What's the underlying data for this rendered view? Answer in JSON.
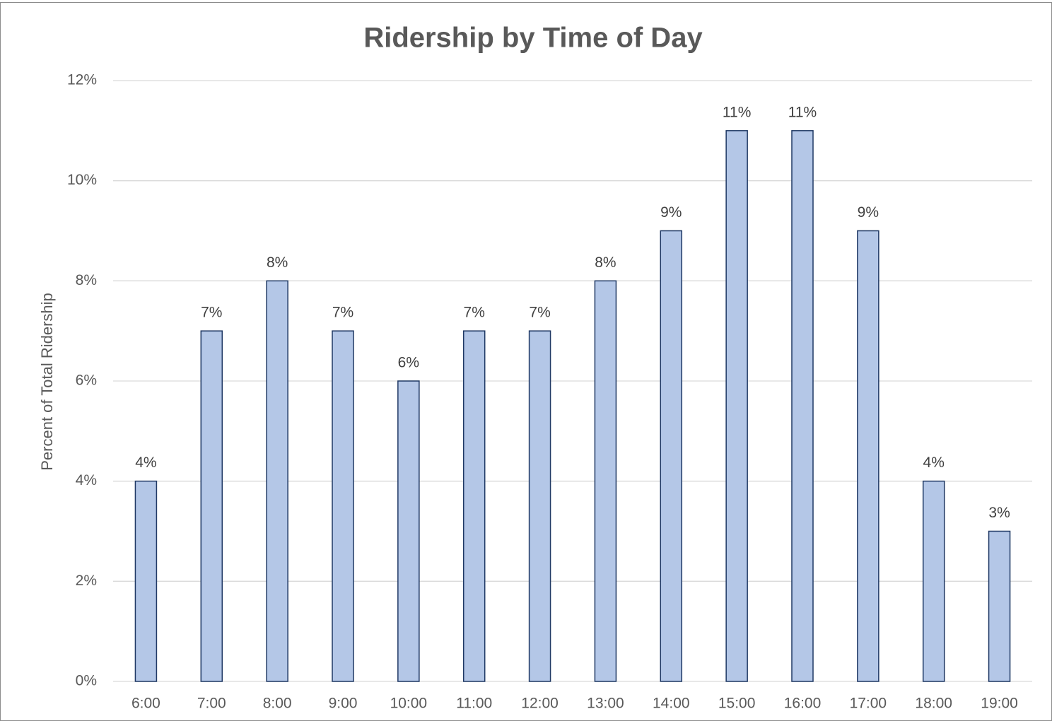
{
  "chart_data": {
    "type": "bar",
    "title": "Ridership by Time of Day",
    "y_label": "Percent of Total Ridership",
    "categories": [
      "6:00",
      "7:00",
      "8:00",
      "9:00",
      "10:00",
      "11:00",
      "12:00",
      "13:00",
      "14:00",
      "15:00",
      "16:00",
      "17:00",
      "18:00",
      "19:00"
    ],
    "values": [
      4,
      7,
      8,
      7,
      6,
      7,
      7,
      8,
      9,
      11,
      11,
      9,
      4,
      3
    ],
    "value_labels": [
      "4%",
      "7%",
      "8%",
      "7%",
      "6%",
      "7%",
      "7%",
      "8%",
      "9%",
      "11%",
      "11%",
      "9%",
      "4%",
      "3%"
    ],
    "color": "#b4c7e7",
    "edge_color": "#1f3864",
    "ylim": [
      0,
      12
    ],
    "yticks": [
      {
        "value": 0,
        "label": "0%"
      },
      {
        "value": 2,
        "label": "2%"
      },
      {
        "value": 4,
        "label": "4%"
      },
      {
        "value": 6,
        "label": "6%"
      },
      {
        "value": 8,
        "label": "8%"
      },
      {
        "value": 10,
        "label": "10%"
      },
      {
        "value": 12,
        "label": "12%"
      }
    ],
    "grid": true
  }
}
